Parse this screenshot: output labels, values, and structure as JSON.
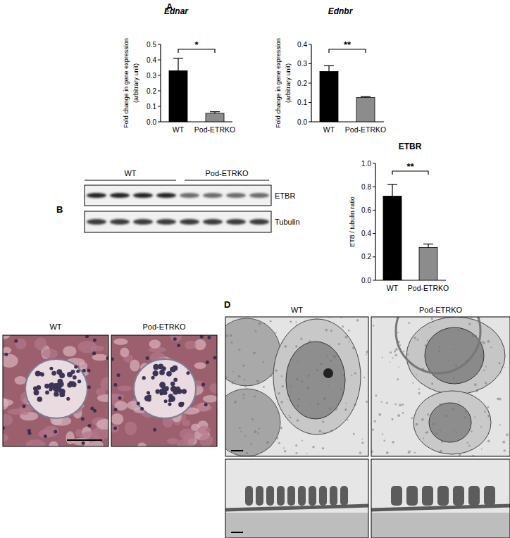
{
  "chart_data": [
    {
      "type": "bar",
      "title": "Ednar",
      "y_label": [
        "Fold change in gene expression",
        "(arbitrary unit)"
      ],
      "categories": [
        "WT",
        "Pod-ETRKO"
      ],
      "values": [
        0.33,
        0.055
      ],
      "errors": [
        0.08,
        0.01
      ],
      "colors": [
        "#000000",
        "#8c8c8c"
      ],
      "ylim": [
        0,
        0.5
      ],
      "yticks": [
        {
          "value": 0,
          "label": "0.0"
        },
        {
          "value": 0.1,
          "label": "0.1"
        },
        {
          "value": 0.2,
          "label": "0.2"
        },
        {
          "value": 0.3,
          "label": "0.3"
        },
        {
          "value": 0.4,
          "label": "0.4"
        },
        {
          "value": 0.5,
          "label": "0.5"
        }
      ],
      "annotations": [
        "*"
      ]
    },
    {
      "type": "bar",
      "title": "Ednbr",
      "y_label": [
        "Fold change in gene expression",
        "(arbitrary unit)"
      ],
      "categories": [
        "WT",
        "Pod-ETRKO"
      ],
      "values": [
        0.26,
        0.125
      ],
      "errors": [
        0.03,
        0.005
      ],
      "colors": [
        "#000000",
        "#8c8c8c"
      ],
      "ylim": [
        0,
        0.4
      ],
      "yticks": [
        {
          "value": 0,
          "label": "0.0"
        },
        {
          "value": 0.1,
          "label": "0.1"
        },
        {
          "value": 0.2,
          "label": "0.2"
        },
        {
          "value": 0.3,
          "label": "0.3"
        },
        {
          "value": 0.4,
          "label": "0.4"
        }
      ],
      "annotations": [
        "**"
      ]
    },
    {
      "type": "bar",
      "title": "ETBR",
      "y_label": [
        "ETB / tubulin ratio"
      ],
      "categories": [
        "WT",
        "Pod-ETRKO"
      ],
      "values": [
        0.72,
        0.28
      ],
      "errors": [
        0.1,
        0.03
      ],
      "colors": [
        "#000000",
        "#8c8c8c"
      ],
      "ylim": [
        0,
        1.0
      ],
      "yticks": [
        {
          "value": 0,
          "label": "0.0"
        },
        {
          "value": 0.2,
          "label": "0.2"
        },
        {
          "value": 0.4,
          "label": "0.4"
        },
        {
          "value": 0.6,
          "label": "0.6"
        },
        {
          "value": 0.8,
          "label": "0.8"
        },
        {
          "value": 1.0,
          "label": "1.0"
        }
      ],
      "annotations": [
        "**"
      ]
    }
  ],
  "panel_labels": [
    "A",
    "B",
    "D"
  ],
  "blot": {
    "groups": [
      "WT",
      "Pod-ETRKO"
    ],
    "rows": [
      "ETBR",
      "Tubulin"
    ]
  },
  "histology": {
    "labels": [
      "WT",
      "Pod-ETRKO"
    ]
  },
  "em": {
    "labels": [
      "WT",
      "Pod-ETRKO"
    ]
  }
}
